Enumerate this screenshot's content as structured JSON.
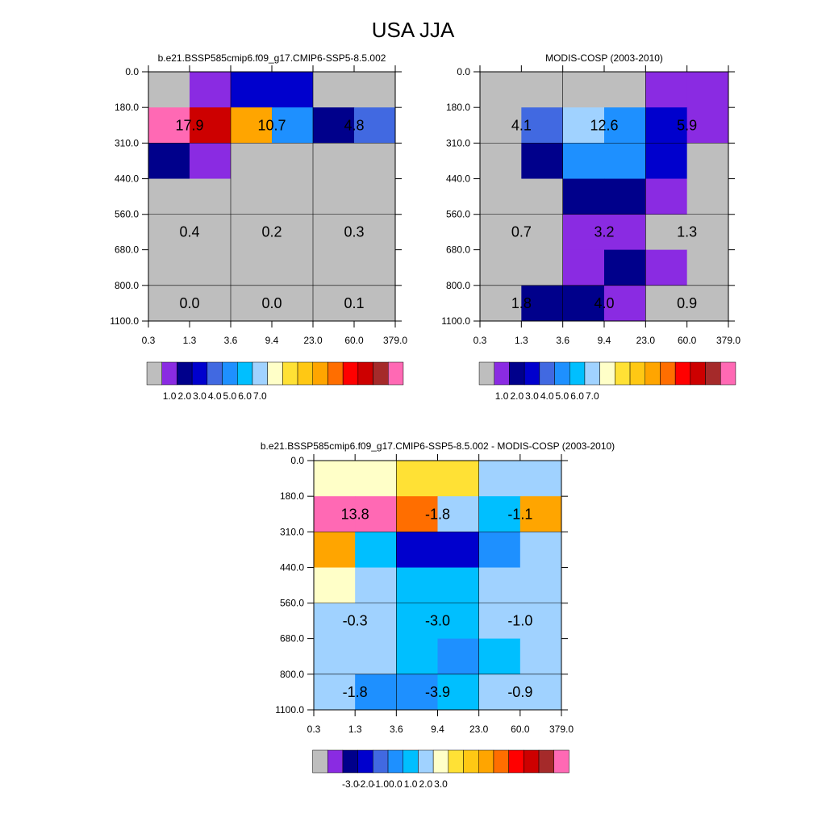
{
  "figure": {
    "title": "USA JJA"
  },
  "chart_data": [
    {
      "type": "heatmap",
      "title": "b.e21.BSSP585cmip6.f09_g17.CMIP6-SSP5-8.5.002",
      "x_ticks": [
        "0.3",
        "1.3",
        "3.6",
        "9.4",
        "23.0",
        "60.0",
        "379.0"
      ],
      "y_ticks": [
        "0.0",
        "180.0",
        "310.0",
        "440.0",
        "560.0",
        "680.0",
        "800.0",
        "1100.0"
      ],
      "palette": [
        "#bebebe",
        "#8a2be2",
        "#00008b",
        "#0000cd",
        "#4169e1",
        "#1e90ff",
        "#00bfff",
        "#a0d2ff",
        "#ffffc8",
        "#ffe135",
        "#ffc814",
        "#ffa500",
        "#ff6e00",
        "#ff0000",
        "#cd0000",
        "#a52a2a",
        "#ff69b4"
      ],
      "colorbar_labels": [
        "1.0",
        "2.0",
        "3.0",
        "4.0",
        "5.0",
        "6.0",
        "7.0"
      ],
      "colorbar_label_positions": [
        1.5,
        2.5,
        3.5,
        4.5,
        5.5,
        6.5,
        7.5
      ],
      "cells": [
        [
          0,
          1,
          3,
          3,
          0,
          0
        ],
        [
          16,
          14,
          11,
          5,
          2,
          4
        ],
        [
          2,
          1,
          0,
          0,
          0,
          0
        ],
        [
          0,
          0,
          0,
          0,
          0,
          0
        ],
        [
          0,
          0,
          0,
          0,
          0,
          0
        ],
        [
          0,
          0,
          0,
          0,
          0,
          0
        ],
        [
          0,
          0,
          0,
          0,
          0,
          0
        ]
      ],
      "annotations": [
        {
          "row": 1,
          "col_center": 1,
          "text": "17.9"
        },
        {
          "row": 1,
          "col_center": 3,
          "text": "10.7"
        },
        {
          "row": 1,
          "col_center": 5,
          "text": "4.8"
        },
        {
          "row": 4,
          "col_center": 1,
          "text": "0.4"
        },
        {
          "row": 4,
          "col_center": 3,
          "text": "0.2"
        },
        {
          "row": 4,
          "col_center": 5,
          "text": "0.3"
        },
        {
          "row": 6,
          "col_center": 1,
          "text": "0.0"
        },
        {
          "row": 6,
          "col_center": 3,
          "text": "0.0"
        },
        {
          "row": 6,
          "col_center": 5,
          "text": "0.1"
        }
      ]
    },
    {
      "type": "heatmap",
      "title": "MODIS-COSP (2003-2010)",
      "x_ticks": [
        "0.3",
        "1.3",
        "3.6",
        "9.4",
        "23.0",
        "60.0",
        "379.0"
      ],
      "y_ticks": [
        "0.0",
        "180.0",
        "310.0",
        "440.0",
        "560.0",
        "680.0",
        "800.0",
        "1100.0"
      ],
      "palette": [
        "#bebebe",
        "#8a2be2",
        "#00008b",
        "#0000cd",
        "#4169e1",
        "#1e90ff",
        "#00bfff",
        "#a0d2ff",
        "#ffffc8",
        "#ffe135",
        "#ffc814",
        "#ffa500",
        "#ff6e00",
        "#ff0000",
        "#cd0000",
        "#a52a2a",
        "#ff69b4"
      ],
      "colorbar_labels": [
        "1.0",
        "2.0",
        "3.0",
        "4.0",
        "5.0",
        "6.0",
        "7.0"
      ],
      "colorbar_label_positions": [
        1.5,
        2.5,
        3.5,
        4.5,
        5.5,
        6.5,
        7.5
      ],
      "cells": [
        [
          0,
          0,
          0,
          0,
          1,
          1
        ],
        [
          0,
          4,
          7,
          5,
          3,
          1
        ],
        [
          0,
          2,
          5,
          5,
          3,
          0
        ],
        [
          0,
          0,
          2,
          2,
          1,
          0
        ],
        [
          0,
          0,
          1,
          1,
          0,
          0
        ],
        [
          0,
          0,
          1,
          2,
          1,
          0
        ],
        [
          0,
          2,
          2,
          1,
          0,
          0
        ]
      ],
      "annotations": [
        {
          "row": 1,
          "col_center": 1,
          "text": "4.1"
        },
        {
          "row": 1,
          "col_center": 3,
          "text": "12.6"
        },
        {
          "row": 1,
          "col_center": 5,
          "text": "5.9"
        },
        {
          "row": 4,
          "col_center": 1,
          "text": "0.7"
        },
        {
          "row": 4,
          "col_center": 3,
          "text": "3.2"
        },
        {
          "row": 4,
          "col_center": 5,
          "text": "1.3"
        },
        {
          "row": 6,
          "col_center": 1,
          "text": "1.8"
        },
        {
          "row": 6,
          "col_center": 3,
          "text": "4.0"
        },
        {
          "row": 6,
          "col_center": 5,
          "text": "0.9"
        }
      ]
    },
    {
      "type": "heatmap",
      "title": "b.e21.BSSP585cmip6.f09_g17.CMIP6-SSP5-8.5.002 - MODIS-COSP (2003-2010)",
      "x_ticks": [
        "0.3",
        "1.3",
        "3.6",
        "9.4",
        "23.0",
        "60.0",
        "379.0"
      ],
      "y_ticks": [
        "0.0",
        "180.0",
        "310.0",
        "440.0",
        "560.0",
        "680.0",
        "800.0",
        "1100.0"
      ],
      "palette": [
        "#bebebe",
        "#8a2be2",
        "#00008b",
        "#0000cd",
        "#4169e1",
        "#1e90ff",
        "#00bfff",
        "#a0d2ff",
        "#ffffc8",
        "#ffe135",
        "#ffc814",
        "#ffa500",
        "#ff6e00",
        "#ff0000",
        "#cd0000",
        "#a52a2a",
        "#ff69b4"
      ],
      "colorbar_labels": [
        "-3.0",
        "-2.0",
        "-1.0",
        "0.0",
        "1.0",
        "2.0",
        "3.0"
      ],
      "colorbar_label_positions": [
        2.5,
        3.5,
        4.5,
        5.5,
        6.5,
        7.5,
        8.5
      ],
      "cells": [
        [
          8,
          8,
          9,
          9,
          7,
          7
        ],
        [
          16,
          16,
          12,
          7,
          6,
          11
        ],
        [
          11,
          6,
          3,
          3,
          5,
          7
        ],
        [
          8,
          7,
          6,
          6,
          7,
          7
        ],
        [
          7,
          7,
          6,
          6,
          7,
          7
        ],
        [
          7,
          7,
          6,
          5,
          6,
          7
        ],
        [
          7,
          5,
          5,
          6,
          7,
          7
        ]
      ],
      "annotations": [
        {
          "row": 1,
          "col_center": 1,
          "text": "13.8"
        },
        {
          "row": 1,
          "col_center": 3,
          "text": "-1.8"
        },
        {
          "row": 1,
          "col_center": 5,
          "text": "-1.1"
        },
        {
          "row": 4,
          "col_center": 1,
          "text": "-0.3"
        },
        {
          "row": 4,
          "col_center": 3,
          "text": "-3.0"
        },
        {
          "row": 4,
          "col_center": 5,
          "text": "-1.0"
        },
        {
          "row": 6,
          "col_center": 1,
          "text": "-1.8"
        },
        {
          "row": 6,
          "col_center": 3,
          "text": "-3.9"
        },
        {
          "row": 6,
          "col_center": 5,
          "text": "-0.9"
        }
      ]
    }
  ]
}
